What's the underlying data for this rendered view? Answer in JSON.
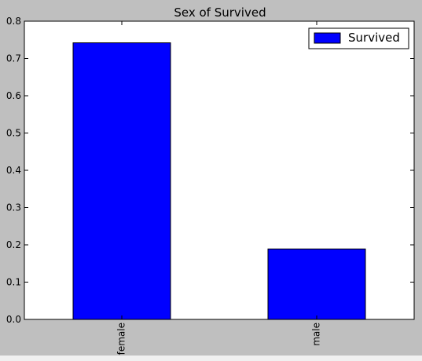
{
  "chart_data": {
    "type": "bar",
    "title": "Sex of Survived",
    "xlabel": "",
    "ylabel": "",
    "categories": [
      "female",
      "male"
    ],
    "series": [
      {
        "name": "Survived",
        "values": [
          0.742,
          0.189
        ],
        "color": "#0000ff"
      }
    ],
    "ylim": [
      0,
      0.8
    ],
    "yticks": [
      0.0,
      0.1,
      0.2,
      0.3,
      0.4,
      0.5,
      0.6,
      0.7,
      0.8
    ],
    "ytick_labels": [
      "0.0",
      "0.1",
      "0.2",
      "0.3",
      "0.4",
      "0.5",
      "0.6",
      "0.7",
      "0.8"
    ],
    "grid": false,
    "legend_position": "top-right",
    "x_tick_rotation": "vertical"
  }
}
